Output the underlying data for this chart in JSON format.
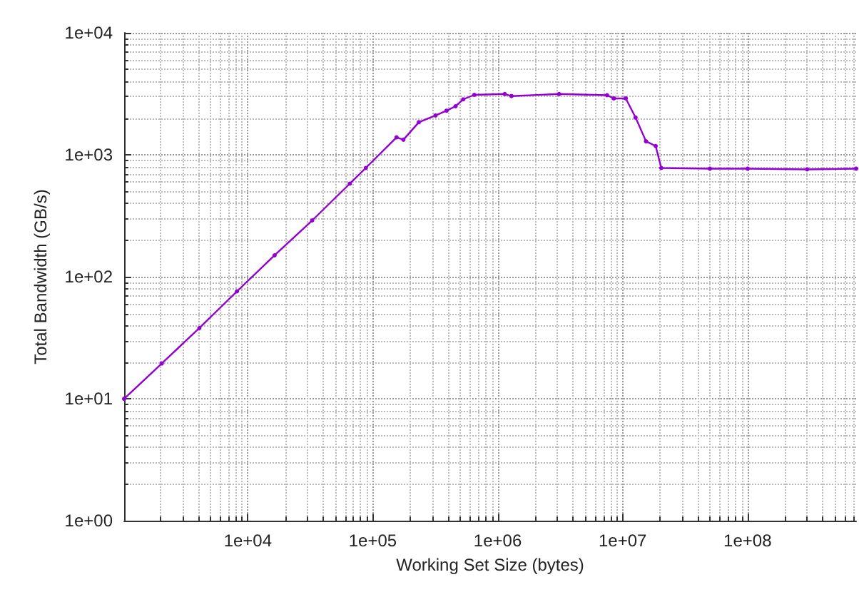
{
  "chart_data": {
    "type": "line",
    "xlabel": "Working Set Size (bytes)",
    "ylabel": "Total Bandwidth (GB/s)",
    "x": [
      1024,
      2048,
      4096,
      8192,
      16384,
      32768,
      65536,
      88000,
      155000,
      176000,
      234000,
      318000,
      390000,
      460000,
      530000,
      650000,
      1140000,
      1290000,
      3100000,
      7500000,
      8500000,
      10600000,
      12700000,
      15400000,
      18400000,
      20400000,
      50000000,
      100000000,
      300000000,
      740000000
    ],
    "series": [
      {
        "color": "#9400d3",
        "values": [
          10,
          19.5,
          38,
          76,
          150,
          290,
          580,
          780,
          1390,
          1330,
          1850,
          2100,
          2300,
          2500,
          2850,
          3100,
          3150,
          3030,
          3150,
          3080,
          2900,
          2900,
          2020,
          1290,
          1180,
          780,
          770,
          770,
          760,
          770
        ]
      }
    ],
    "xlim": [
      1024,
      740000000
    ],
    "ylim": [
      1,
      10000
    ],
    "log": "xy",
    "xticks": [
      {
        "value": 10000,
        "label": "1e+04"
      },
      {
        "value": 100000,
        "label": "1e+05"
      },
      {
        "value": 1000000,
        "label": "1e+06"
      },
      {
        "value": 10000000,
        "label": "1e+07"
      },
      {
        "value": 100000000,
        "label": "1e+08"
      }
    ],
    "yticks": [
      {
        "value": 1,
        "label": "1e+00"
      },
      {
        "value": 10,
        "label": "1e+01"
      },
      {
        "value": 100,
        "label": "1e+02"
      },
      {
        "value": 1000,
        "label": "1e+03"
      },
      {
        "value": 10000,
        "label": "1e+04"
      }
    ],
    "grid": true,
    "marker": "circle",
    "line_style": "solid"
  }
}
